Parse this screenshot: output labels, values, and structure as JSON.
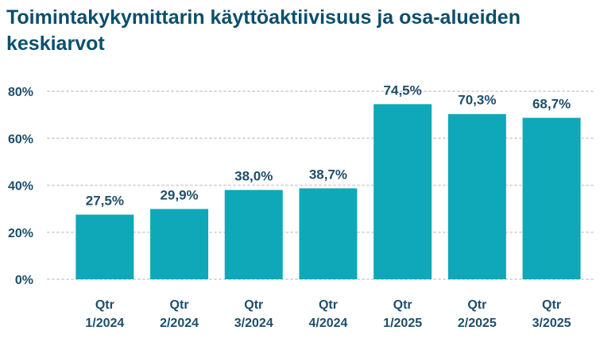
{
  "chart_data": {
    "type": "bar",
    "title_lines": [
      "Toimintakykymittarin käyttöaktiivisuus ja osa-alueiden",
      "keskiarvot"
    ],
    "categories": [
      [
        "Qtr",
        "1/2024"
      ],
      [
        "Qtr",
        "2/2024"
      ],
      [
        "Qtr",
        "3/2024"
      ],
      [
        "Qtr",
        "4/2024"
      ],
      [
        "Qtr",
        "1/2025"
      ],
      [
        "Qtr",
        "2/2025"
      ],
      [
        "Qtr",
        "3/2025"
      ]
    ],
    "values": [
      27.5,
      29.9,
      38.0,
      38.7,
      74.5,
      70.3,
      68.7
    ],
    "data_labels": [
      "27,5%",
      "29,9%",
      "38,0%",
      "38,7%",
      "74,5%",
      "70,3%",
      "68,7%"
    ],
    "ylim": [
      0,
      80
    ],
    "yticks": [
      0,
      20,
      40,
      60,
      80
    ],
    "ytick_labels": [
      "0%",
      "20%",
      "40%",
      "60%",
      "80%"
    ],
    "grid": true,
    "legend": "none",
    "colors": {
      "bar": "#0ea8b8",
      "title": "#0b4f6c",
      "text": "#1d4e6b",
      "grid": "#d9d9d9"
    }
  }
}
